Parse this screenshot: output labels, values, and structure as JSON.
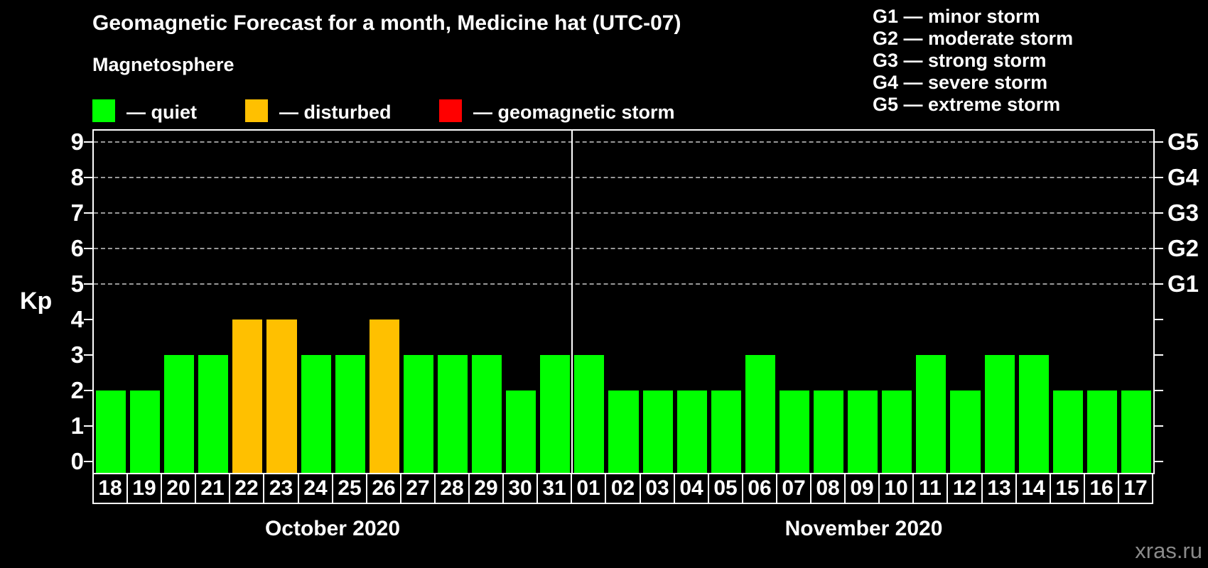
{
  "title": "Geomagnetic Forecast for a month, Medicine hat (UTC-07)",
  "magnetosphere_legend": {
    "title": "Magnetosphere",
    "items": [
      {
        "key": "quiet",
        "label": "— quiet",
        "color": "#00ff00"
      },
      {
        "key": "disturbed",
        "label": "— disturbed",
        "color": "#ffc000"
      },
      {
        "key": "storm",
        "label": "— geomagnetic storm",
        "color": "#ff0000"
      }
    ]
  },
  "g_scale_legend": {
    "items": [
      "G1 — minor storm",
      "G2 — moderate storm",
      "G3 — strong storm",
      "G4 — severe storm",
      "G5 — extreme storm"
    ]
  },
  "watermark": "xras.ru",
  "colors": {
    "background": "#000000",
    "quiet": "#00ff00",
    "disturbed": "#ffc000",
    "storm": "#ff0000",
    "axis": "#ffffff",
    "grid": "#999999",
    "text": "#ffffff",
    "watermark": "#8a8a8a"
  },
  "chart_data": {
    "type": "bar",
    "y_axis_label": "Kp",
    "ylim": [
      0,
      9
    ],
    "y_ticks": [
      0,
      1,
      2,
      3,
      4,
      5,
      6,
      7,
      8,
      9
    ],
    "gridlines_at_kp": [
      5,
      6,
      7,
      8,
      9
    ],
    "grid": "dashed horizontal lines at storm levels Kp 5-9",
    "legend_position": "top-left",
    "right_axis_labels": [
      {
        "kp": 5,
        "label": "G1"
      },
      {
        "kp": 6,
        "label": "G2"
      },
      {
        "kp": 7,
        "label": "G3"
      },
      {
        "kp": 8,
        "label": "G4"
      },
      {
        "kp": 9,
        "label": "G5"
      }
    ],
    "groups": [
      {
        "month_label": "October 2020",
        "days": [
          {
            "day": "18",
            "kp": 2,
            "status": "quiet"
          },
          {
            "day": "19",
            "kp": 2,
            "status": "quiet"
          },
          {
            "day": "20",
            "kp": 3,
            "status": "quiet"
          },
          {
            "day": "21",
            "kp": 3,
            "status": "quiet"
          },
          {
            "day": "22",
            "kp": 4,
            "status": "disturbed"
          },
          {
            "day": "23",
            "kp": 4,
            "status": "disturbed"
          },
          {
            "day": "24",
            "kp": 3,
            "status": "quiet"
          },
          {
            "day": "25",
            "kp": 3,
            "status": "quiet"
          },
          {
            "day": "26",
            "kp": 4,
            "status": "disturbed"
          },
          {
            "day": "27",
            "kp": 3,
            "status": "quiet"
          },
          {
            "day": "28",
            "kp": 3,
            "status": "quiet"
          },
          {
            "day": "29",
            "kp": 3,
            "status": "quiet"
          },
          {
            "day": "30",
            "kp": 2,
            "status": "quiet"
          },
          {
            "day": "31",
            "kp": 3,
            "status": "quiet"
          }
        ]
      },
      {
        "month_label": "November 2020",
        "days": [
          {
            "day": "01",
            "kp": 3,
            "status": "quiet"
          },
          {
            "day": "02",
            "kp": 2,
            "status": "quiet"
          },
          {
            "day": "03",
            "kp": 2,
            "status": "quiet"
          },
          {
            "day": "04",
            "kp": 2,
            "status": "quiet"
          },
          {
            "day": "05",
            "kp": 2,
            "status": "quiet"
          },
          {
            "day": "06",
            "kp": 3,
            "status": "quiet"
          },
          {
            "day": "07",
            "kp": 2,
            "status": "quiet"
          },
          {
            "day": "08",
            "kp": 2,
            "status": "quiet"
          },
          {
            "day": "09",
            "kp": 2,
            "status": "quiet"
          },
          {
            "day": "10",
            "kp": 2,
            "status": "quiet"
          },
          {
            "day": "11",
            "kp": 3,
            "status": "quiet"
          },
          {
            "day": "12",
            "kp": 2,
            "status": "quiet"
          },
          {
            "day": "13",
            "kp": 3,
            "status": "quiet"
          },
          {
            "day": "14",
            "kp": 3,
            "status": "quiet"
          },
          {
            "day": "15",
            "kp": 2,
            "status": "quiet"
          },
          {
            "day": "16",
            "kp": 2,
            "status": "quiet"
          },
          {
            "day": "17",
            "kp": 2,
            "status": "quiet"
          }
        ]
      }
    ]
  }
}
